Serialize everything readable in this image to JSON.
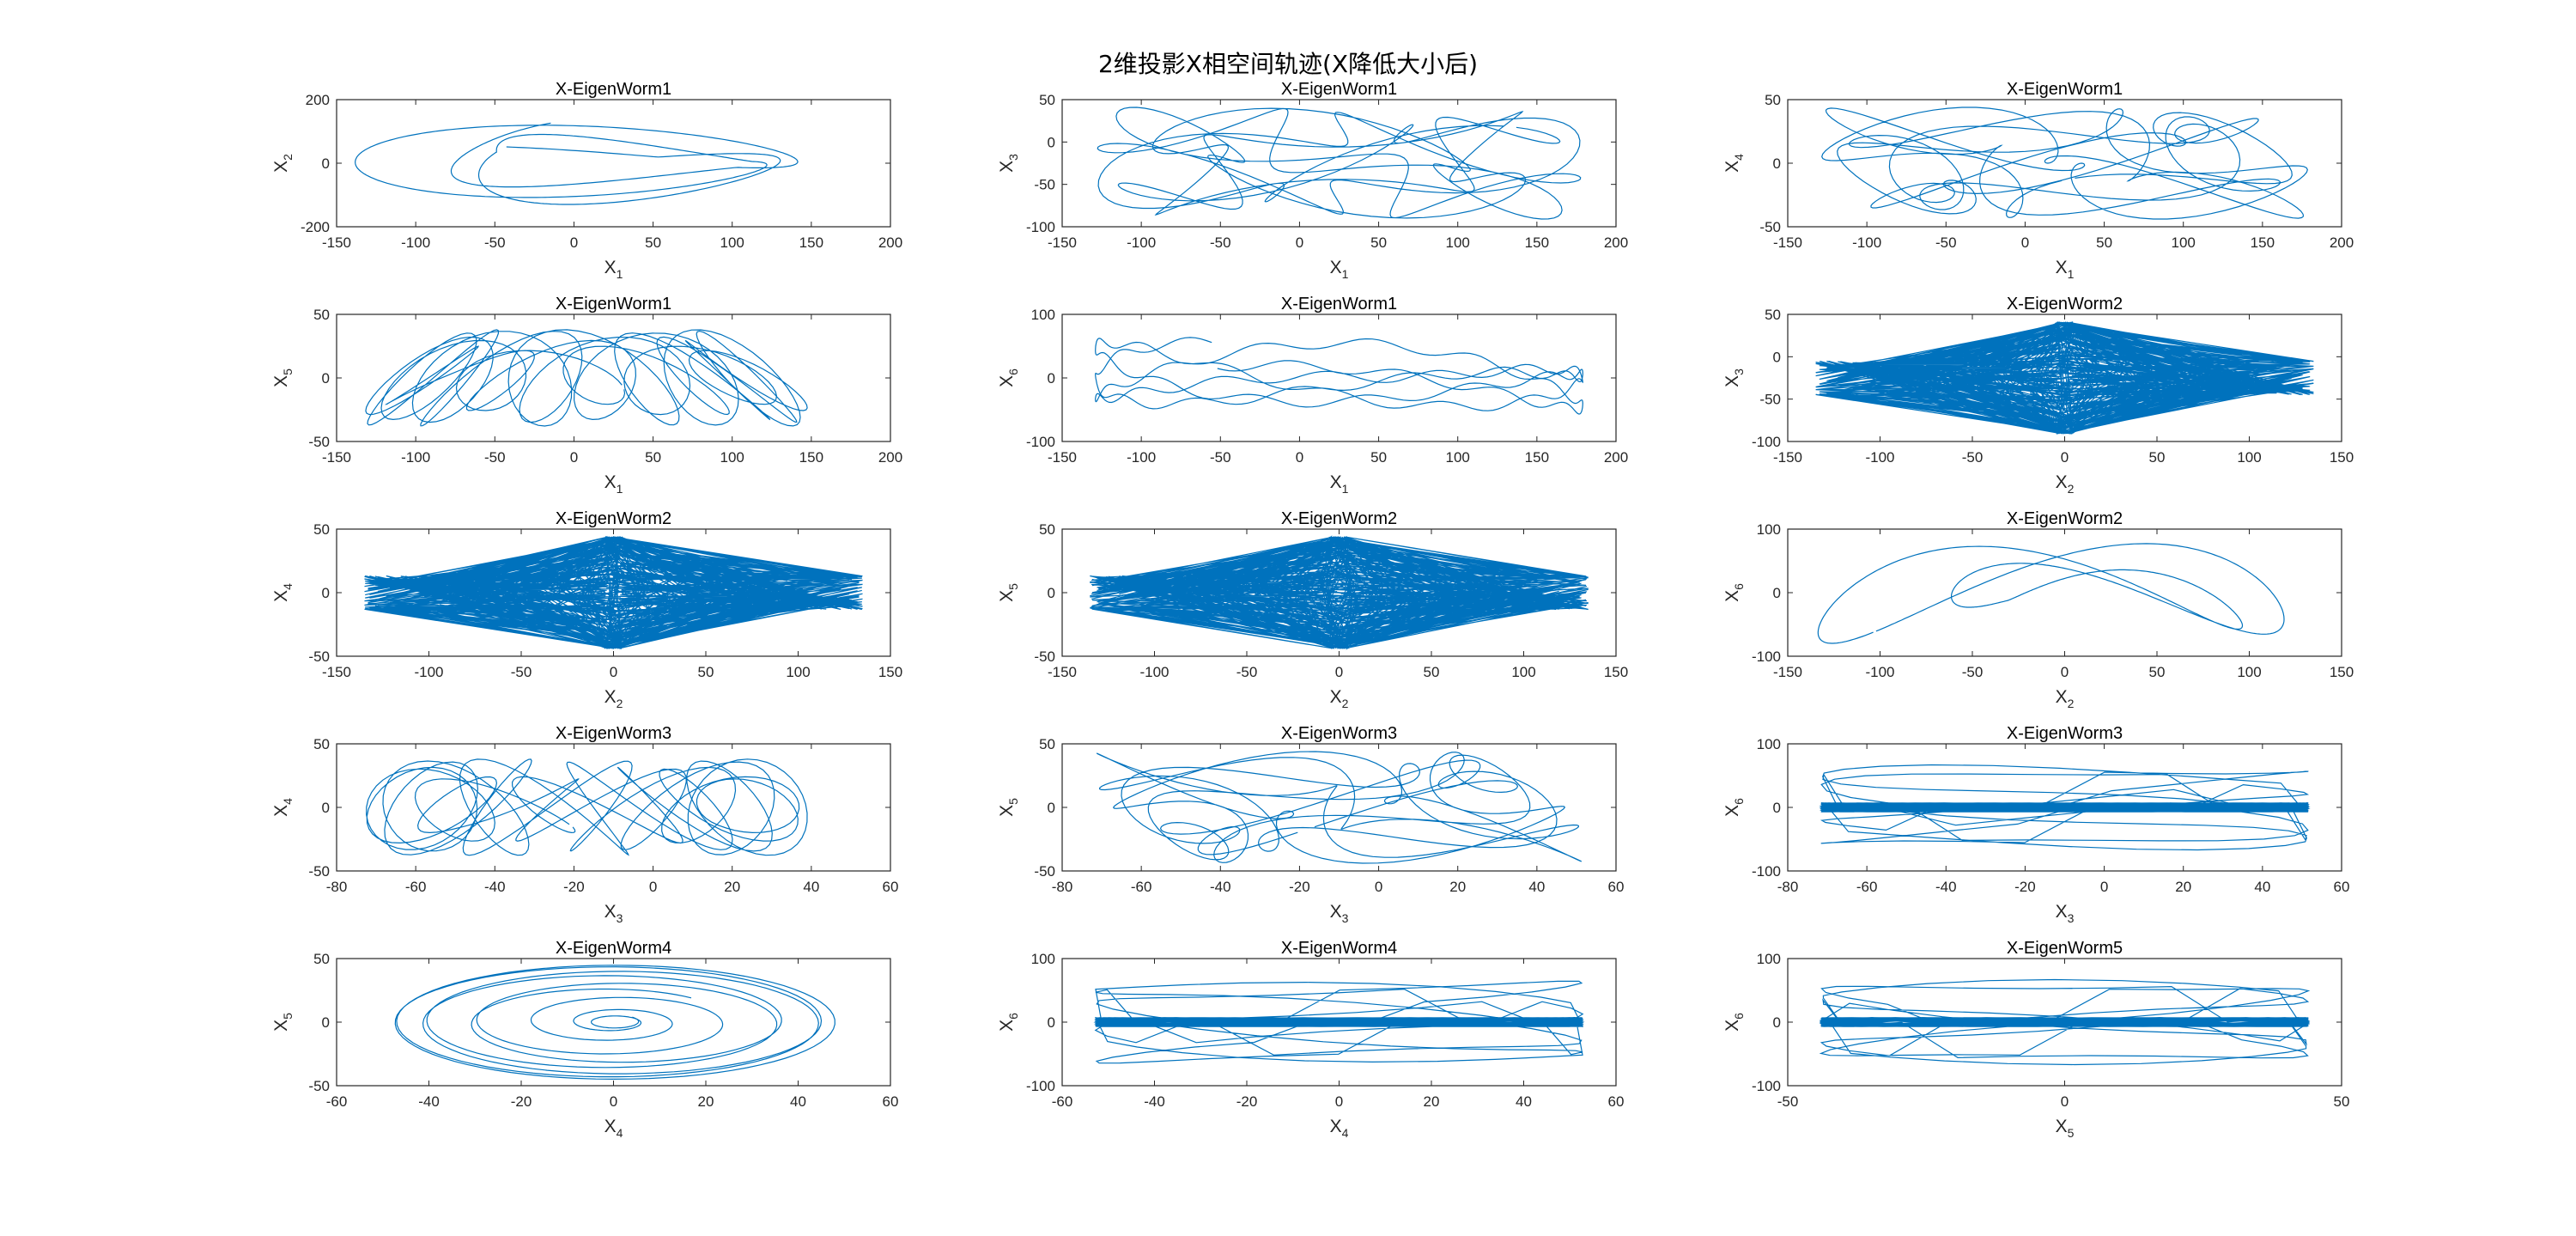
{
  "figure": {
    "title": "2维投影X相空间轨迹(X降低大小后)",
    "line_color": "#0072BD",
    "axis_color": "#262626"
  },
  "chart_data": [
    {
      "type": "line",
      "title": "X-EigenWorm1",
      "xlabel": "X",
      "xsub": "1",
      "ylabel": "X",
      "ysub": "2",
      "xlim": [
        -150,
        200
      ],
      "ylim": [
        -200,
        200
      ],
      "xticks": [
        -150,
        -100,
        -50,
        0,
        50,
        100,
        150,
        200
      ],
      "yticks": [
        -200,
        0,
        200
      ],
      "pattern": "lens"
    },
    {
      "type": "line",
      "title": "X-EigenWorm1",
      "xlabel": "X",
      "xsub": "1",
      "ylabel": "X",
      "ysub": "3",
      "xlim": [
        -150,
        200
      ],
      "ylim": [
        -100,
        50
      ],
      "xticks": [
        -150,
        -100,
        -50,
        0,
        50,
        100,
        150,
        200
      ],
      "yticks": [
        -100,
        -50,
        0,
        50
      ],
      "pattern": "tangle"
    },
    {
      "type": "line",
      "title": "X-EigenWorm1",
      "xlabel": "X",
      "xsub": "1",
      "ylabel": "X",
      "ysub": "4",
      "xlim": [
        -150,
        200
      ],
      "ylim": [
        -50,
        50
      ],
      "xticks": [
        -150,
        -100,
        -50,
        0,
        50,
        100,
        150,
        200
      ],
      "yticks": [
        -50,
        0,
        50
      ],
      "pattern": "tangle"
    },
    {
      "type": "line",
      "title": "X-EigenWorm1",
      "xlabel": "X",
      "xsub": "1",
      "ylabel": "X",
      "ysub": "5",
      "xlim": [
        -150,
        200
      ],
      "ylim": [
        -50,
        50
      ],
      "xticks": [
        -150,
        -100,
        -50,
        0,
        50,
        100,
        150,
        200
      ],
      "yticks": [
        -50,
        0,
        50
      ],
      "pattern": "loops"
    },
    {
      "type": "line",
      "title": "X-EigenWorm1",
      "xlabel": "X",
      "xsub": "1",
      "ylabel": "X",
      "ysub": "6",
      "xlim": [
        -150,
        200
      ],
      "ylim": [
        -100,
        100
      ],
      "xticks": [
        -150,
        -100,
        -50,
        0,
        50,
        100,
        150,
        200
      ],
      "yticks": [
        -100,
        0,
        100
      ],
      "pattern": "wave"
    },
    {
      "type": "line",
      "title": "X-EigenWorm2",
      "xlabel": "X",
      "xsub": "2",
      "ylabel": "X",
      "ysub": "3",
      "xlim": [
        -150,
        150
      ],
      "ylim": [
        -100,
        50
      ],
      "xticks": [
        -150,
        -100,
        -50,
        0,
        50,
        100,
        150
      ],
      "yticks": [
        -100,
        -50,
        0,
        50
      ],
      "pattern": "cross"
    },
    {
      "type": "line",
      "title": "X-EigenWorm2",
      "xlabel": "X",
      "xsub": "2",
      "ylabel": "X",
      "ysub": "4",
      "xlim": [
        -150,
        150
      ],
      "ylim": [
        -50,
        50
      ],
      "xticks": [
        -150,
        -100,
        -50,
        0,
        50,
        100,
        150
      ],
      "yticks": [
        -50,
        0,
        50
      ],
      "pattern": "cross"
    },
    {
      "type": "line",
      "title": "X-EigenWorm2",
      "xlabel": "X",
      "xsub": "2",
      "ylabel": "X",
      "ysub": "5",
      "xlim": [
        -150,
        150
      ],
      "ylim": [
        -50,
        50
      ],
      "xticks": [
        -150,
        -100,
        -50,
        0,
        50,
        100,
        150
      ],
      "yticks": [
        -50,
        0,
        50
      ],
      "pattern": "cross"
    },
    {
      "type": "line",
      "title": "X-EigenWorm2",
      "xlabel": "X",
      "xsub": "2",
      "ylabel": "X",
      "ysub": "6",
      "xlim": [
        -150,
        150
      ],
      "ylim": [
        -100,
        100
      ],
      "xticks": [
        -150,
        -100,
        -50,
        0,
        50,
        100,
        150
      ],
      "yticks": [
        -100,
        0,
        100
      ],
      "pattern": "figure8"
    },
    {
      "type": "line",
      "title": "X-EigenWorm3",
      "xlabel": "X",
      "xsub": "3",
      "ylabel": "X",
      "ysub": "4",
      "xlim": [
        -80,
        60
      ],
      "ylim": [
        -50,
        50
      ],
      "xticks": [
        -80,
        -60,
        -40,
        -20,
        0,
        20,
        40,
        60
      ],
      "yticks": [
        -50,
        0,
        50
      ],
      "pattern": "loops"
    },
    {
      "type": "line",
      "title": "X-EigenWorm3",
      "xlabel": "X",
      "xsub": "3",
      "ylabel": "X",
      "ysub": "5",
      "xlim": [
        -80,
        60
      ],
      "ylim": [
        -50,
        50
      ],
      "xticks": [
        -80,
        -60,
        -40,
        -20,
        0,
        20,
        40,
        60
      ],
      "yticks": [
        -50,
        0,
        50
      ],
      "pattern": "tangle"
    },
    {
      "type": "line",
      "title": "X-EigenWorm3",
      "xlabel": "X",
      "xsub": "3",
      "ylabel": "X",
      "ysub": "6",
      "xlim": [
        -80,
        60
      ],
      "ylim": [
        -100,
        100
      ],
      "xticks": [
        -80,
        -60,
        -40,
        -20,
        0,
        20,
        40,
        60
      ],
      "yticks": [
        -100,
        0,
        100
      ],
      "pattern": "flat"
    },
    {
      "type": "line",
      "title": "X-EigenWorm4",
      "xlabel": "X",
      "xsub": "4",
      "ylabel": "X",
      "ysub": "5",
      "xlim": [
        -60,
        60
      ],
      "ylim": [
        -50,
        50
      ],
      "xticks": [
        -60,
        -40,
        -20,
        0,
        20,
        40,
        60
      ],
      "yticks": [
        -50,
        0,
        50
      ],
      "pattern": "ellipses"
    },
    {
      "type": "line",
      "title": "X-EigenWorm4",
      "xlabel": "X",
      "xsub": "4",
      "ylabel": "X",
      "ysub": "6",
      "xlim": [
        -60,
        60
      ],
      "ylim": [
        -100,
        100
      ],
      "xticks": [
        -60,
        -40,
        -20,
        0,
        20,
        40,
        60
      ],
      "yticks": [
        -100,
        0,
        100
      ],
      "pattern": "flat"
    },
    {
      "type": "line",
      "title": "X-EigenWorm5",
      "xlabel": "X",
      "xsub": "5",
      "ylabel": "X",
      "ysub": "6",
      "xlim": [
        -50,
        50
      ],
      "ylim": [
        -100,
        100
      ],
      "xticks": [
        -50,
        0,
        50
      ],
      "yticks": [
        -100,
        0,
        100
      ],
      "pattern": "flat"
    }
  ]
}
